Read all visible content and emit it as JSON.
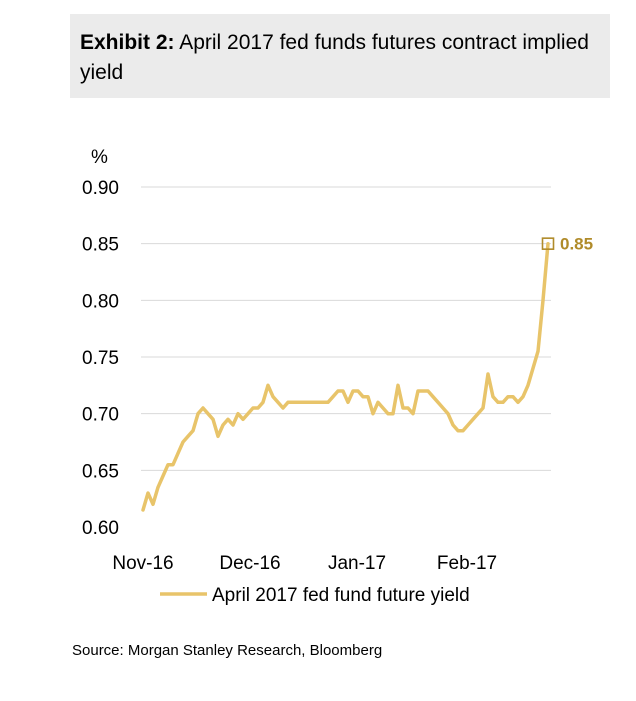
{
  "header": {
    "label": "Exhibit 2:",
    "title": "April 2017 fed funds futures contract implied yield"
  },
  "source": "Source: Morgan Stanley Research, Bloomberg",
  "colors": {
    "line": "#e8c46a",
    "end_marker": "#b08b2a",
    "grid": "#d9d9d9"
  },
  "chart_data": {
    "type": "line",
    "title": "April 2017 fed funds futures contract implied yield",
    "ylabel": "%",
    "xlabel": "",
    "ylim": [
      0.6,
      0.9
    ],
    "yticks": [
      "0.90",
      "0.85",
      "0.80",
      "0.75",
      "0.70",
      "0.65",
      "0.60"
    ],
    "ytick_values": [
      0.9,
      0.85,
      0.8,
      0.75,
      0.7,
      0.65,
      0.6
    ],
    "xticks": [
      "Nov-16",
      "Dec-16",
      "Jan-17",
      "Feb-17"
    ],
    "grid": true,
    "legend": "bottom",
    "annotation": "0.85",
    "series": [
      {
        "name": "April 2017 fed fund future yield",
        "values": [
          0.615,
          0.63,
          0.62,
          0.635,
          0.645,
          0.655,
          0.655,
          0.665,
          0.675,
          0.68,
          0.685,
          0.7,
          0.705,
          0.7,
          0.695,
          0.68,
          0.69,
          0.695,
          0.69,
          0.7,
          0.695,
          0.7,
          0.705,
          0.705,
          0.71,
          0.725,
          0.715,
          0.71,
          0.705,
          0.71,
          0.71,
          0.71,
          0.71,
          0.71,
          0.71,
          0.71,
          0.71,
          0.71,
          0.715,
          0.72,
          0.72,
          0.71,
          0.72,
          0.72,
          0.715,
          0.715,
          0.7,
          0.71,
          0.705,
          0.7,
          0.7,
          0.725,
          0.705,
          0.705,
          0.7,
          0.72,
          0.72,
          0.72,
          0.715,
          0.71,
          0.705,
          0.7,
          0.69,
          0.685,
          0.685,
          0.69,
          0.695,
          0.7,
          0.705,
          0.735,
          0.715,
          0.71,
          0.71,
          0.715,
          0.715,
          0.71,
          0.715,
          0.725,
          0.74,
          0.755,
          0.8,
          0.85
        ]
      }
    ]
  }
}
